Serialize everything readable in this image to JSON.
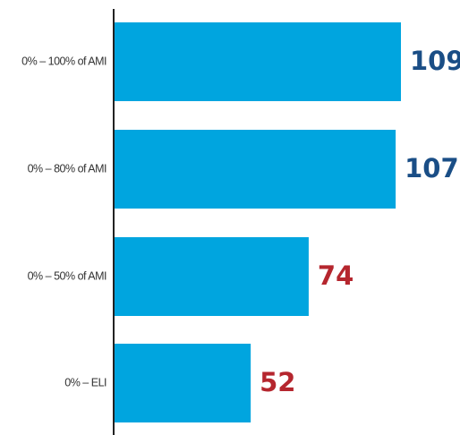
{
  "chart_data": {
    "type": "bar",
    "orientation": "horizontal",
    "categories": [
      "0% – 100% of AMI",
      "0% – 80% of AMI",
      "0% – 50% of AMI",
      "0% – ELI"
    ],
    "values": [
      109,
      107,
      74,
      52
    ],
    "data_labels": [
      "109",
      "107",
      "74",
      "52"
    ],
    "title": "",
    "xlabel": "",
    "ylabel": "",
    "xlim": [
      0,
      120
    ],
    "grid": false,
    "legend": "none",
    "colors": {
      "bar": "#00a5df",
      "axis": "#222222",
      "label_high": "#1a4e86",
      "label_low": "#b5262e",
      "category_text": "#333333"
    },
    "label_color_by_index": [
      "label_high",
      "label_high",
      "label_low",
      "label_low"
    ]
  }
}
